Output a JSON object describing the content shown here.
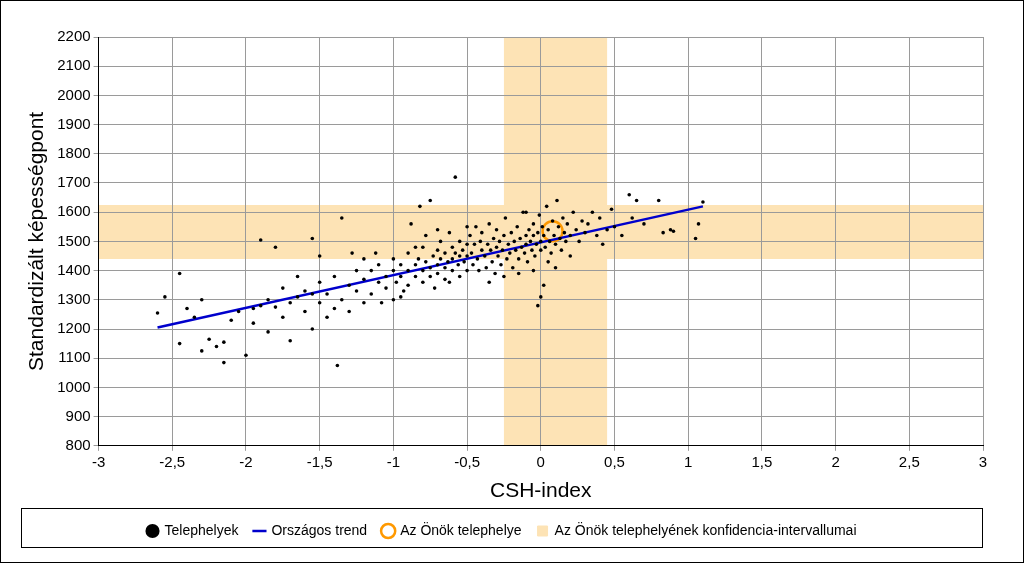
{
  "chart_data": {
    "type": "scatter",
    "x_label": "CSH-index",
    "y_label": "Standardizált képességpont",
    "xlim": [
      -3,
      3
    ],
    "xticks": [
      -3,
      {
        "value": -2.5,
        "label": "-2,5"
      },
      -2,
      {
        "value": -1.5,
        "label": "-1,5"
      },
      -1,
      {
        "value": -0.5,
        "label": "-0,5"
      },
      0,
      {
        "value": 0.5,
        "label": "0,5"
      },
      1,
      {
        "value": 1.5,
        "label": "1,5"
      },
      2,
      {
        "value": 2.5,
        "label": "2,5"
      },
      3
    ],
    "ylim": [
      800,
      2200
    ],
    "yticks": [
      800,
      900,
      1000,
      1100,
      1200,
      1300,
      1400,
      1500,
      1600,
      1700,
      1800,
      1900,
      2000,
      2100,
      2200
    ],
    "grid": true,
    "legend": "bottom",
    "series": [
      {
        "name": "Telephelyek",
        "type": "scatter",
        "marker": "dot",
        "color": "#000000",
        "x": [
          -2.6,
          -2.55,
          -2.45,
          -2.45,
          -2.4,
          -2.35,
          -2.3,
          -2.3,
          -2.25,
          -2.2,
          -2.15,
          -2.15,
          -2.1,
          -2.05,
          -2.0,
          -1.95,
          -1.95,
          -1.9,
          -1.9,
          -1.85,
          -1.85,
          -1.8,
          -1.8,
          -1.75,
          -1.75,
          -1.7,
          -1.7,
          -1.65,
          -1.65,
          -1.6,
          -1.6,
          -1.55,
          -1.55,
          -1.55,
          -1.5,
          -1.5,
          -1.5,
          -1.45,
          -1.45,
          -1.4,
          -1.4,
          -1.38,
          -1.35,
          -1.35,
          -1.3,
          -1.3,
          -1.25,
          -1.25,
          -1.2,
          -1.2,
          -1.15,
          -1.15,
          -1.1,
          -1.1,
          -1.08,
          -1.05,
          -1.05,
          -1.0,
          -1.0,
          -1.0,
          -0.98,
          -0.95,
          -0.95,
          -0.93,
          -0.9,
          -0.9,
          -0.9,
          -0.88,
          -0.85,
          -0.85,
          -0.83,
          -0.8,
          -0.8,
          -0.8,
          -0.78,
          -0.78,
          -0.75,
          -0.75,
          -0.73,
          -0.72,
          -0.7,
          -0.7,
          -0.7,
          -0.68,
          -0.68,
          -0.65,
          -0.65,
          -0.65,
          -0.63,
          -0.62,
          -0.6,
          -0.6,
          -0.6,
          -0.58,
          -0.58,
          -0.56,
          -0.55,
          -0.55,
          -0.55,
          -0.53,
          -0.52,
          -0.5,
          -0.5,
          -0.5,
          -0.5,
          -0.75,
          -0.85,
          -1.2,
          -1.28,
          -1.12,
          -0.95,
          -0.7,
          -0.62,
          -0.82,
          -0.48,
          -0.47,
          -0.46,
          -0.45,
          -0.44,
          -0.43,
          -0.42,
          -0.41,
          -0.4,
          -0.4,
          -0.38,
          -0.37,
          -0.36,
          -0.35,
          -0.34,
          -0.33,
          -0.32,
          -0.31,
          -0.3,
          -0.3,
          -0.29,
          -0.28,
          -0.27,
          -0.26,
          -0.25,
          -0.24,
          -0.23,
          -0.22,
          -0.21,
          -0.2,
          -0.19,
          -0.18,
          -0.17,
          -0.16,
          -0.15,
          -0.14,
          -0.13,
          -0.12,
          -0.11,
          -0.1,
          -0.1,
          -0.09,
          -0.08,
          -0.07,
          -0.06,
          -0.05,
          -0.05,
          -0.04,
          -0.03,
          -0.02,
          -0.01,
          0.0,
          0.0,
          0.01,
          0.02,
          0.03,
          0.04,
          0.05,
          0.06,
          0.07,
          0.08,
          0.09,
          0.1,
          0.11,
          0.12,
          0.13,
          0.14,
          0.15,
          0.16,
          0.17,
          0.18,
          0.2,
          0.22,
          0.24,
          0.26,
          0.28,
          0.3,
          -0.15,
          -0.05,
          0.05,
          -0.25,
          -0.35,
          0.0,
          -0.02,
          0.02,
          -0.1,
          0.1,
          0.2,
          0.32,
          0.35,
          0.38,
          0.4,
          0.42,
          0.45,
          0.48,
          0.5,
          0.55,
          0.6,
          0.62,
          0.65,
          0.7,
          0.8,
          0.83,
          0.88,
          0.9,
          1.05,
          1.07,
          1.1
        ],
        "y": [
          1255,
          1310,
          1390,
          1150,
          1270,
          1240,
          1125,
          1300,
          1165,
          1140,
          1085,
          1155,
          1230,
          1260,
          1110,
          1270,
          1220,
          1505,
          1280,
          1190,
          1300,
          1480,
          1275,
          1240,
          1340,
          1290,
          1160,
          1310,
          1380,
          1260,
          1330,
          1200,
          1510,
          1320,
          1290,
          1450,
          1360,
          1240,
          1320,
          1270,
          1380,
          1075,
          1580,
          1300,
          1350,
          1260,
          1400,
          1330,
          1290,
          1370,
          1400,
          1320,
          1360,
          1420,
          1290,
          1380,
          1340,
          1400,
          1300,
          1440,
          1360,
          1420,
          1380,
          1330,
          1460,
          1400,
          1350,
          1560,
          1420,
          1380,
          1440,
          1400,
          1360,
          1480,
          1520,
          1430,
          1410,
          1380,
          1450,
          1340,
          1470,
          1420,
          1390,
          1500,
          1440,
          1460,
          1410,
          1370,
          1430,
          1530,
          1480,
          1440,
          1400,
          1720,
          1460,
          1420,
          1500,
          1450,
          1380,
          1470,
          1430,
          1550,
          1490,
          1450,
          1400,
          1640,
          1480,
          1440,
          1460,
          1460,
          1310,
          1540,
          1360,
          1620,
          1520,
          1460,
          1420,
          1490,
          1550,
          1440,
          1400,
          1500,
          1470,
          1530,
          1450,
          1410,
          1490,
          1560,
          1470,
          1430,
          1510,
          1390,
          1480,
          1540,
          1450,
          1500,
          1420,
          1470,
          1520,
          1580,
          1440,
          1490,
          1460,
          1530,
          1410,
          1500,
          1470,
          1550,
          1440,
          1510,
          1480,
          1600,
          1460,
          1520,
          1490,
          1430,
          1540,
          1500,
          1470,
          1560,
          1520,
          1450,
          1490,
          1530,
          1590,
          1500,
          1470,
          1550,
          1520,
          1480,
          1620,
          1540,
          1500,
          1460,
          1570,
          1520,
          1490,
          1640,
          1550,
          1510,
          1470,
          1580,
          1530,
          1500,
          1560,
          1520,
          1600,
          1540,
          1500,
          1570,
          1530,
          1390,
          1400,
          1430,
          1380,
          1360,
          1310,
          1280,
          1350,
          1600,
          1410,
          1450,
          1560,
          1600,
          1520,
          1580,
          1490,
          1540,
          1610,
          1550,
          1520,
          1660,
          1580,
          1640,
          1560,
          1640,
          1530,
          1540,
          1535,
          1510,
          1560,
          1635
        ]
      },
      {
        "name": "Országos trend",
        "type": "line",
        "color": "#0000cc",
        "x": [
          -2.6,
          1.1
        ],
        "y": [
          1205,
          1620
        ]
      },
      {
        "name": "Az Önök telephelye",
        "type": "scatter",
        "marker": "ring",
        "color": "#ff9900",
        "x": [
          0.08
        ],
        "y": [
          1535
        ]
      },
      {
        "name": "Az Önök telephelyének konfidencia-intervallumai",
        "type": "band",
        "color": "#fde3b5",
        "x": [
          -0.25,
          0.45
        ],
        "y": [
          1440,
          1625
        ]
      }
    ]
  }
}
